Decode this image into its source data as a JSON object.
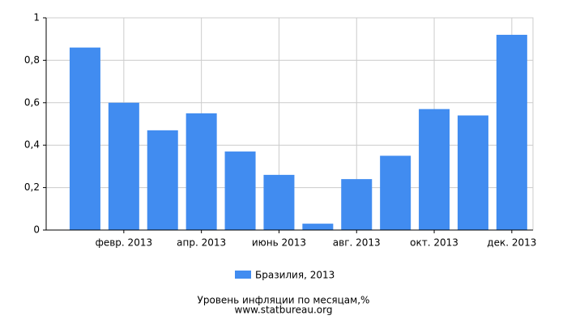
{
  "chart_data": {
    "type": "bar",
    "title": "Уровень инфляции по месяцам,%",
    "source": "www.statbureau.org",
    "categories": [
      null,
      "февр. 2013",
      null,
      "апр. 2013",
      null,
      "июнь 2013",
      null,
      "авг. 2013",
      null,
      "окт. 2013",
      null,
      "дек. 2013"
    ],
    "series": [
      {
        "name": "Бразилия, 2013",
        "color": "#418cf0",
        "values": [
          0.86,
          0.6,
          0.47,
          0.55,
          0.37,
          0.26,
          0.03,
          0.24,
          0.35,
          0.57,
          0.54,
          0.92
        ]
      }
    ],
    "ylim": [
      0,
      1
    ],
    "yticks": [
      0,
      {
        "value": 0.2,
        "label": "0,2"
      },
      {
        "value": 0.4,
        "label": "0,4"
      },
      {
        "value": 0.6,
        "label": "0,6"
      },
      {
        "value": 0.8,
        "label": "0,8"
      },
      1
    ],
    "grid": true
  }
}
